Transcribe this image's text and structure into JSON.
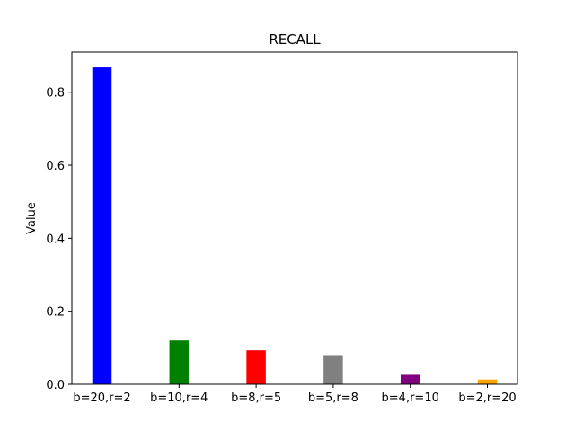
{
  "chart_data": {
    "type": "bar",
    "title": "RECALL",
    "xlabel": "",
    "ylabel": "Value",
    "categories": [
      "b=20,r=2",
      "b=10,r=4",
      "b=8,r=5",
      "b=5,r=8",
      "b=4,r=10",
      "b=2,r=20"
    ],
    "values": [
      0.868,
      0.12,
      0.093,
      0.08,
      0.026,
      0.013
    ],
    "colors": [
      "#0000ff",
      "#008000",
      "#ff0000",
      "#808080",
      "#800080",
      "#ffa500"
    ],
    "ylim": [
      0,
      0.91
    ],
    "yticks": [
      0.0,
      0.2,
      0.4,
      0.6,
      0.8
    ],
    "ytick_labels": [
      "0.0",
      "0.2",
      "0.4",
      "0.6",
      "0.8"
    ],
    "grid": false,
    "legend": "none"
  }
}
